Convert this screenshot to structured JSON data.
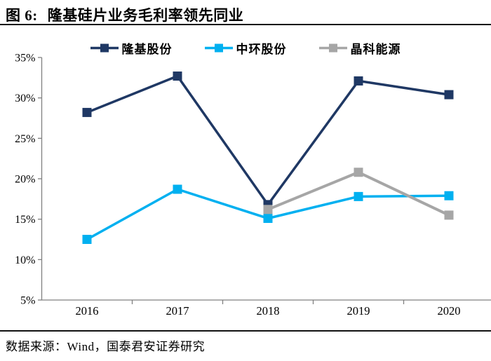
{
  "header": {
    "figure_label": "图 6:",
    "title": "隆基硅片业务毛利率领先同业"
  },
  "footer": {
    "source": "数据来源：Wind，国泰君安证券研究"
  },
  "chart_data": {
    "type": "line",
    "title": "隆基硅片业务毛利率领先同业",
    "xlabel": "",
    "ylabel": "",
    "categories": [
      "2016",
      "2017",
      "2018",
      "2019",
      "2020"
    ],
    "series": [
      {
        "name": "隆基股份",
        "color": "#1f3864",
        "line_width": 3.5,
        "values": [
          28.2,
          32.7,
          16.8,
          32.1,
          30.4
        ]
      },
      {
        "name": "中环股份",
        "color": "#00b0f0",
        "line_width": 3.5,
        "values": [
          12.5,
          18.7,
          15.1,
          17.8,
          17.9
        ]
      },
      {
        "name": "晶科能源",
        "color": "#a6a6a6",
        "line_width": 4,
        "values": [
          null,
          null,
          16.2,
          20.8,
          15.5
        ]
      }
    ],
    "ylim": [
      5,
      35
    ],
    "ytick_step": 5,
    "ytick_suffix": "%",
    "grid": false,
    "legend_position": "top",
    "marker": "square",
    "marker_size": 13,
    "axis_color": "#808080",
    "tick_label_color": "#000000"
  }
}
